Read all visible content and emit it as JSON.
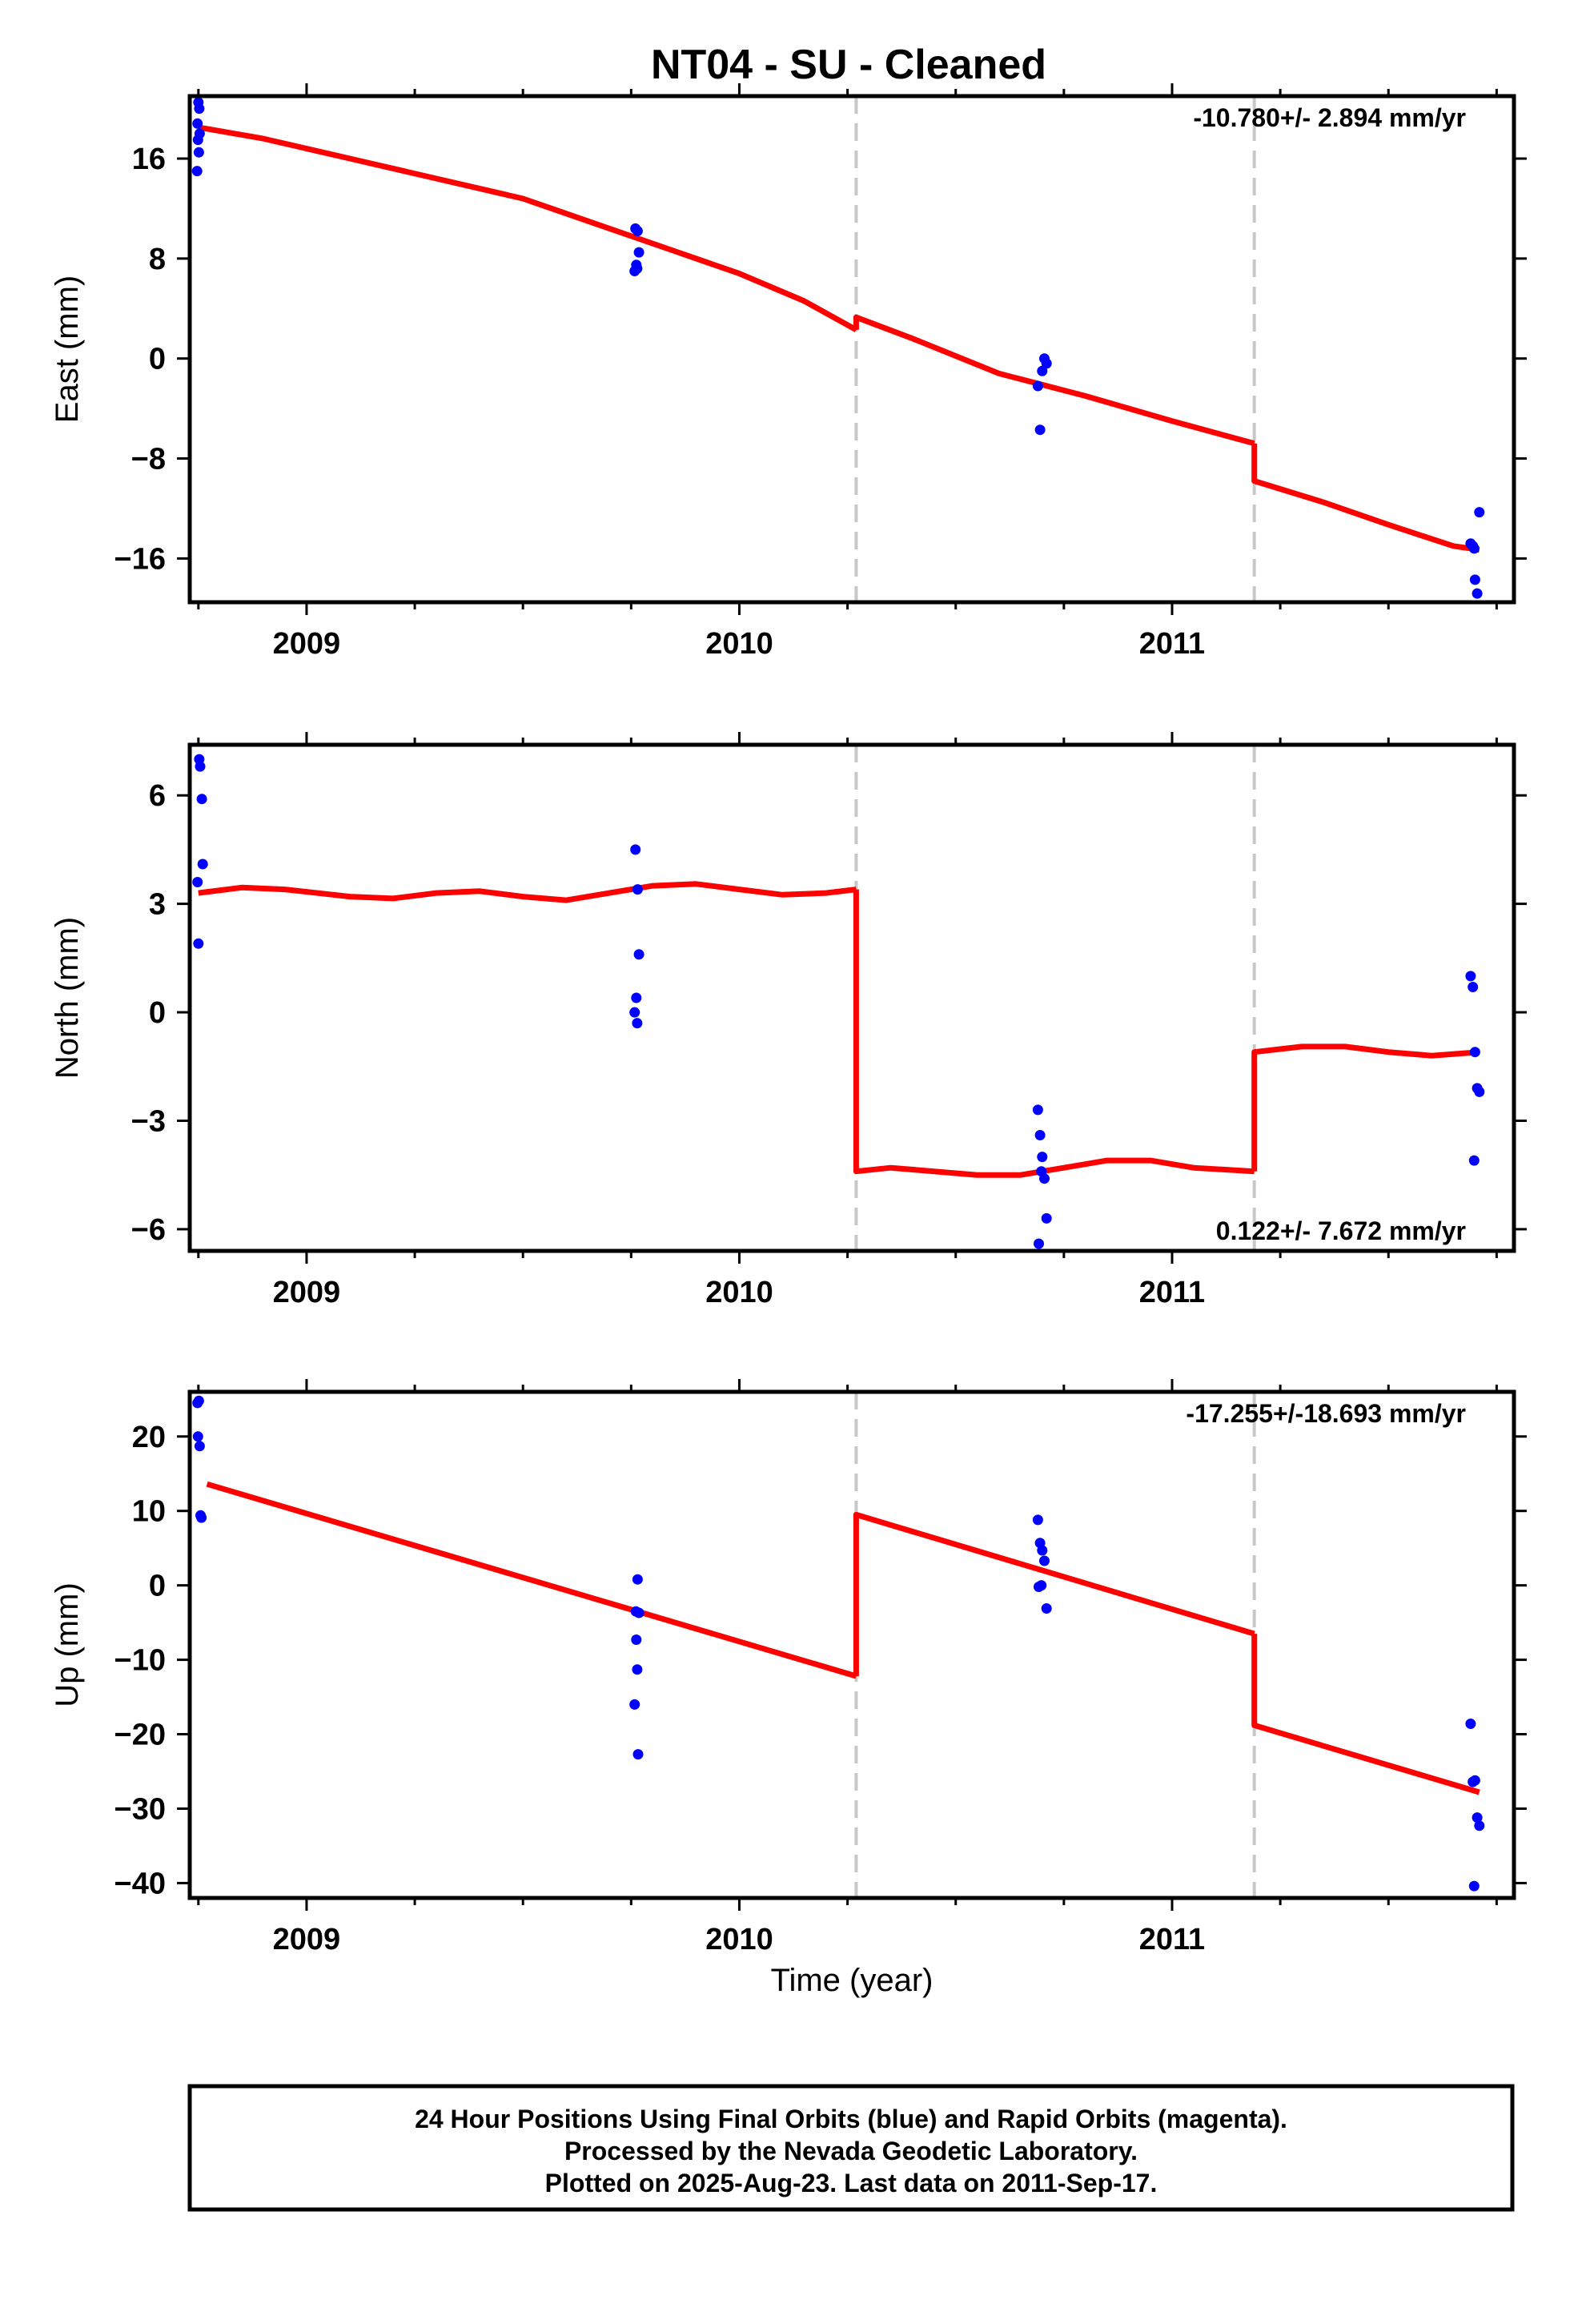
{
  "title": "NT04  - SU - Cleaned",
  "chart_data": [
    {
      "type": "scatter",
      "name": "east",
      "ylabel": "East (mm)",
      "xlabel": "",
      "xlim": [
        2008.73,
        2011.79
      ],
      "ylim": [
        -19.5,
        21.0
      ],
      "yticks": [
        16,
        8,
        0,
        -8,
        -16
      ],
      "ytick_labels": [
        "16",
        "8",
        "0",
        "−8",
        "−16"
      ],
      "xticks": [
        2009,
        2010,
        2011
      ],
      "xtick_labels": [
        "2009",
        "2010",
        "2011"
      ],
      "rate_text": "-10.780+/- 2.894 mm/yr",
      "rate_position": "top-right",
      "break_lines": [
        2010.27,
        2011.19
      ],
      "observations": {
        "color": "#0000ff",
        "x": [
          2008.75,
          2008.752,
          2008.748,
          2008.749,
          2008.753,
          2008.751,
          2008.747,
          2009.76,
          2009.765,
          2009.768,
          2009.762,
          2009.758,
          2009.764,
          2010.69,
          2010.705,
          2010.71,
          2010.7,
          2010.695,
          2011.69,
          2011.695,
          2011.7,
          2011.705,
          2011.71,
          2011.698
        ],
        "y": [
          20.5,
          20.0,
          18.8,
          17.5,
          18.0,
          16.5,
          15.0,
          10.4,
          10.2,
          8.5,
          7.5,
          7.0,
          7.2,
          -2.2,
          0.0,
          -0.4,
          -1.0,
          -5.7,
          -14.8,
          -15.0,
          -17.7,
          -18.8,
          -12.3,
          -15.2
        ]
      },
      "model": {
        "color": "#ff0000",
        "segments": [
          {
            "x": [
              2008.75,
              2008.9,
              2009.1,
              2009.3,
              2009.5,
              2009.7,
              2009.85,
              2010.0,
              2010.15,
              2010.27
            ],
            "y": [
              18.5,
              17.6,
              16.0,
              14.4,
              12.8,
              10.4,
              8.6,
              6.8,
              4.6,
              2.3
            ]
          },
          {
            "x": [
              2010.27,
              2010.4,
              2010.6,
              2010.8,
              2011.0,
              2011.19
            ],
            "y": [
              3.3,
              1.6,
              -1.2,
              -3.0,
              -5.0,
              -6.8
            ]
          },
          {
            "x": [
              2011.19,
              2011.35,
              2011.5,
              2011.65,
              2011.71
            ],
            "y": [
              -9.8,
              -11.5,
              -13.3,
              -15.0,
              -15.3
            ]
          }
        ]
      }
    },
    {
      "type": "scatter",
      "name": "north",
      "ylabel": "North (mm)",
      "xlabel": "",
      "xlim": [
        2008.73,
        2011.79
      ],
      "ylim": [
        -6.6,
        7.4
      ],
      "yticks": [
        6,
        3,
        0,
        -3,
        -6
      ],
      "ytick_labels": [
        "6",
        "3",
        "0",
        "−3",
        "−6"
      ],
      "xticks": [
        2009,
        2010,
        2011
      ],
      "xtick_labels": [
        "2009",
        "2010",
        "2011"
      ],
      "rate_text": "0.122+/- 7.672 mm/yr",
      "rate_position": "bottom-right",
      "break_lines": [
        2010.27,
        2011.19
      ],
      "observations": {
        "color": "#0000ff",
        "x": [
          2008.752,
          2008.754,
          2008.758,
          2008.76,
          2008.748,
          2008.75,
          2009.76,
          2009.765,
          2009.768,
          2009.762,
          2009.758,
          2009.764,
          2010.69,
          2010.695,
          2010.7,
          2010.705,
          2010.698,
          2010.71,
          2010.692,
          2011.69,
          2011.695,
          2011.7,
          2011.705,
          2011.71,
          2011.698
        ],
        "y": [
          7.0,
          6.8,
          5.9,
          4.1,
          3.6,
          1.9,
          4.5,
          3.4,
          1.6,
          0.4,
          0.0,
          -0.3,
          -2.7,
          -3.4,
          -4.0,
          -4.6,
          -4.4,
          -5.7,
          -6.4,
          1.0,
          0.7,
          -1.1,
          -2.1,
          -2.2,
          -4.1
        ]
      },
      "model": {
        "color": "#ff0000",
        "segments": [
          {
            "x": [
              2008.75,
              2008.85,
              2008.95,
              2009.1,
              2009.2,
              2009.3,
              2009.4,
              2009.5,
              2009.6,
              2009.7,
              2009.8,
              2009.9,
              2010.0,
              2010.1,
              2010.2,
              2010.27
            ],
            "y": [
              3.3,
              3.45,
              3.4,
              3.2,
              3.15,
              3.3,
              3.35,
              3.2,
              3.1,
              3.3,
              3.5,
              3.55,
              3.4,
              3.25,
              3.3,
              3.4
            ]
          },
          {
            "x": [
              2010.27,
              2010.35,
              2010.45,
              2010.55,
              2010.65,
              2010.75,
              2010.85,
              2010.95,
              2011.05,
              2011.19
            ],
            "y": [
              -4.4,
              -4.3,
              -4.4,
              -4.5,
              -4.5,
              -4.3,
              -4.1,
              -4.1,
              -4.3,
              -4.4
            ]
          },
          {
            "x": [
              2011.19,
              2011.3,
              2011.4,
              2011.5,
              2011.6,
              2011.71
            ],
            "y": [
              -1.1,
              -0.95,
              -0.95,
              -1.1,
              -1.2,
              -1.1
            ]
          }
        ]
      }
    },
    {
      "type": "scatter",
      "name": "up",
      "ylabel": "Up (mm)",
      "xlabel": "Time (year)",
      "xlim": [
        2008.73,
        2011.79
      ],
      "ylim": [
        -42,
        26
      ],
      "yticks": [
        20,
        10,
        0,
        -10,
        -20,
        -30,
        -40
      ],
      "ytick_labels": [
        "20",
        "10",
        "0",
        "−10",
        "−20",
        "−30",
        "−40"
      ],
      "xticks": [
        2009,
        2010,
        2011
      ],
      "xtick_labels": [
        "2009",
        "2010",
        "2011"
      ],
      "rate_text": "-17.255+/-18.693 mm/yr",
      "rate_position": "top-right",
      "break_lines": [
        2010.27,
        2011.19
      ],
      "observations": {
        "color": "#0000ff",
        "x": [
          2008.748,
          2008.751,
          2008.749,
          2008.753,
          2008.755,
          2008.757,
          2009.765,
          2009.768,
          2009.762,
          2009.764,
          2009.758,
          2009.766,
          2009.761,
          2010.69,
          2010.695,
          2010.7,
          2010.705,
          2010.698,
          2010.71,
          2010.692,
          2011.69,
          2011.695,
          2011.7,
          2011.705,
          2011.71,
          2011.698
        ],
        "y": [
          24.5,
          24.8,
          20.0,
          18.7,
          9.4,
          9.1,
          0.8,
          -3.7,
          -7.3,
          -11.3,
          -16.0,
          -22.7,
          -3.5,
          8.8,
          5.7,
          4.7,
          3.3,
          0.0,
          -3.1,
          -0.2,
          -18.6,
          -26.4,
          -26.2,
          -31.2,
          -32.3,
          -40.4
        ]
      },
      "model": {
        "color": "#ff0000",
        "segments": [
          {
            "x": [
              2008.77,
              2010.27
            ],
            "y": [
              13.6,
              -12.2
            ]
          },
          {
            "x": [
              2010.27,
              2011.19
            ],
            "y": [
              9.5,
              -6.5
            ]
          },
          {
            "x": [
              2011.19,
              2011.71
            ],
            "y": [
              -18.8,
              -27.8
            ]
          }
        ]
      }
    }
  ],
  "footer": {
    "line1": "24 Hour Positions Using Final Orbits (blue) and Rapid Orbits (magenta).",
    "line2": "Processed by the Nevada Geodetic Laboratory.",
    "line3": "Plotted on 2025-Aug-23. Last data on 2011-Sep-17."
  }
}
